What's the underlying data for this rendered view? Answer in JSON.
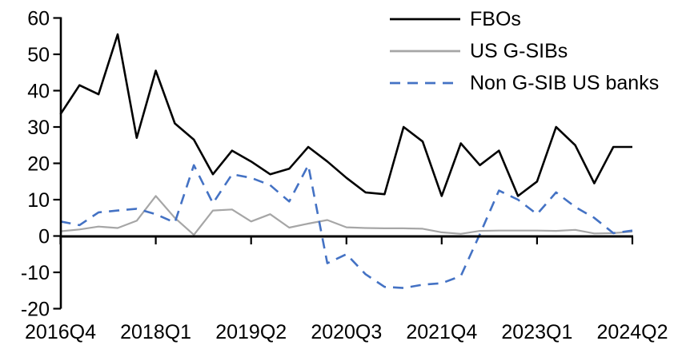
{
  "chart_data": {
    "type": "line",
    "title": "",
    "grid": false,
    "legend_position": "top-right",
    "ylim": [
      -20,
      60
    ],
    "y_ticks": [
      60,
      50,
      40,
      30,
      20,
      10,
      0,
      -10,
      -20
    ],
    "y_tick_labels": [
      "60",
      "50",
      "40",
      "30",
      "20",
      "10",
      "0",
      "-10",
      "-20"
    ],
    "x_tick_indices": [
      0,
      5,
      10,
      15,
      20,
      25,
      30
    ],
    "x_tick_labels": [
      "2016Q4",
      "2018Q1",
      "2019Q2",
      "2020Q3",
      "2021Q4",
      "2023Q1",
      "2024Q2"
    ],
    "categories": [
      "2016Q4",
      "2017Q1",
      "2017Q2",
      "2017Q3",
      "2017Q4",
      "2018Q1",
      "2018Q2",
      "2018Q3",
      "2018Q4",
      "2019Q1",
      "2019Q2",
      "2019Q3",
      "2019Q4",
      "2020Q1",
      "2020Q2",
      "2020Q3",
      "2020Q4",
      "2021Q1",
      "2021Q2",
      "2021Q3",
      "2021Q4",
      "2022Q1",
      "2022Q2",
      "2022Q3",
      "2022Q4",
      "2023Q1",
      "2023Q2",
      "2023Q3",
      "2023Q4",
      "2024Q1",
      "2024Q2"
    ],
    "series": [
      {
        "name": "FBOs",
        "color": "#000000",
        "style": "solid",
        "values": [
          33.5,
          41.5,
          39,
          55.5,
          27,
          45.5,
          31,
          26.5,
          17,
          23.5,
          20.5,
          17,
          18.5,
          24.5,
          20.5,
          16,
          12,
          11.5,
          30,
          26,
          11,
          25.5,
          19.5,
          23.5,
          11,
          15,
          30,
          25,
          14.5,
          24.5,
          24.5
        ]
      },
      {
        "name": "US G-SIBs",
        "color": "#A6A6A6",
        "style": "solid",
        "values": [
          1.3,
          1.8,
          2.6,
          2.2,
          4.2,
          11,
          5,
          0.3,
          7,
          7.3,
          4,
          6,
          2.3,
          3.4,
          4.4,
          2.4,
          2.2,
          2.1,
          2.1,
          2,
          1,
          0.6,
          1.4,
          1.5,
          1.5,
          1.5,
          1.4,
          1.7,
          0.7,
          0.8,
          1.2
        ]
      },
      {
        "name": "Non G-SIB US banks",
        "color": "#4472C4",
        "style": "dashed",
        "values": [
          4,
          3,
          6.5,
          7,
          7.5,
          6,
          3.7,
          19.5,
          9,
          17,
          16,
          14,
          9.5,
          19.5,
          -7.5,
          -5,
          -10.5,
          -14,
          -14.3,
          -13.4,
          -13,
          -11,
          0.5,
          12.5,
          10,
          6,
          12,
          8,
          5,
          0.8,
          1.5
        ]
      }
    ]
  }
}
